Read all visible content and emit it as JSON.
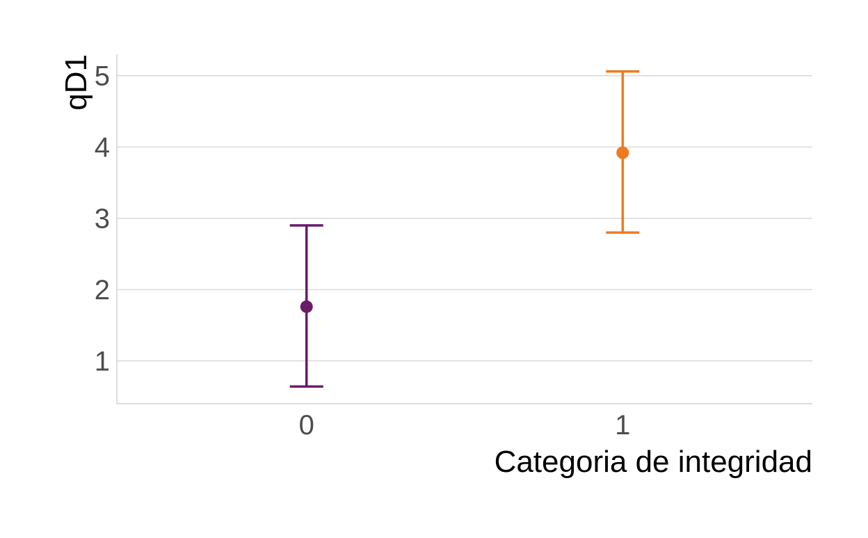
{
  "chart_data": {
    "type": "scatter",
    "subtype": "point-with-error-bars",
    "title": "",
    "xlabel": "Categoria de integridad",
    "ylabel": "qD1",
    "categories": [
      "0",
      "1"
    ],
    "y_ticks": [
      "1",
      "2",
      "3",
      "4",
      "5"
    ],
    "ylim": [
      0.4,
      5.3
    ],
    "grid": "horizontal major",
    "legend": "none",
    "points": [
      {
        "category": "0",
        "value": 1.76,
        "lower": 0.64,
        "upper": 2.9,
        "color": "#6a1b6a"
      },
      {
        "category": "1",
        "value": 3.92,
        "lower": 2.8,
        "upper": 5.06,
        "color": "#f07a1e"
      }
    ]
  }
}
